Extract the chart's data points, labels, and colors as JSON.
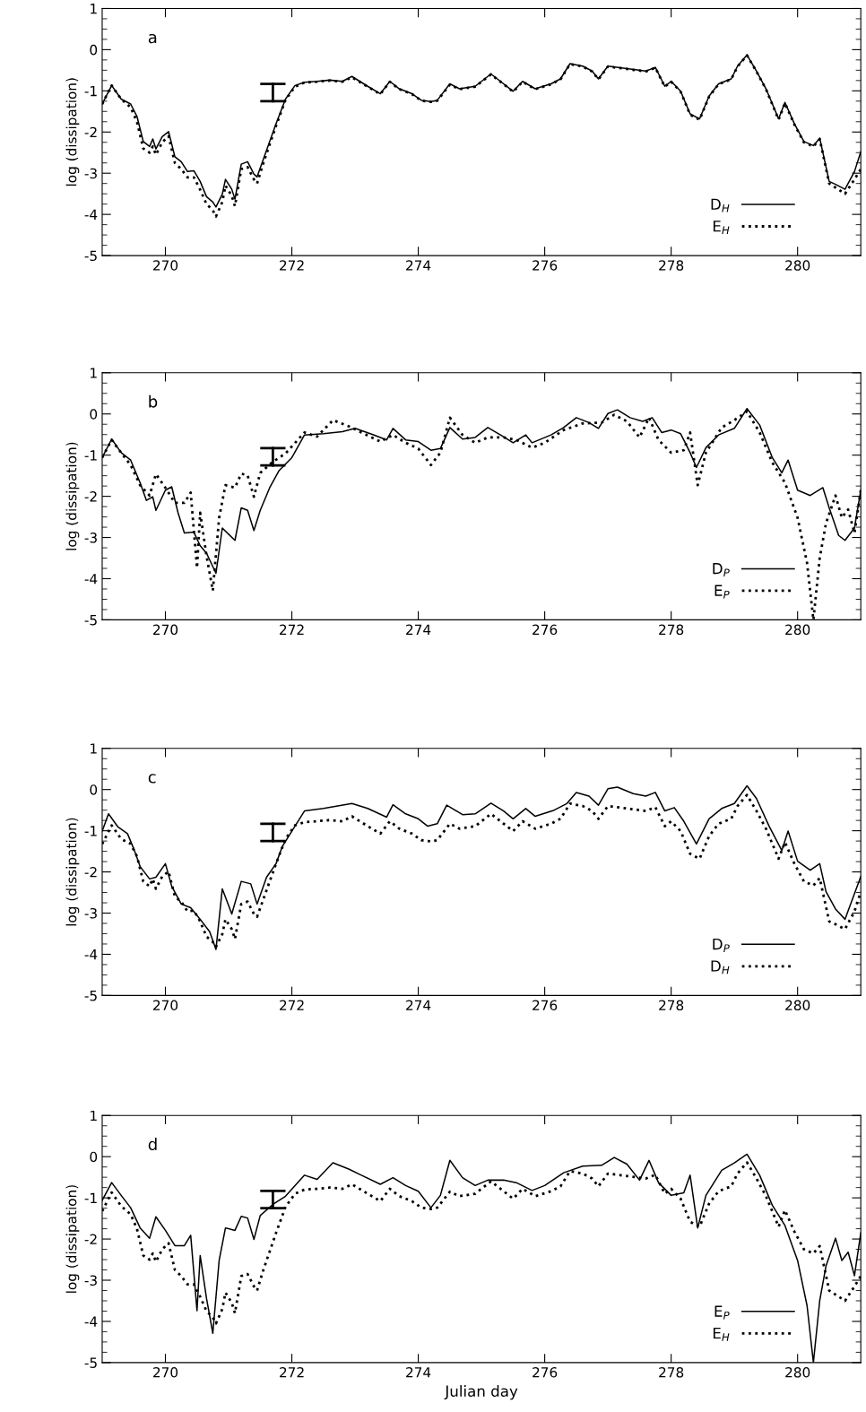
{
  "chart_data": [
    {
      "type": "line",
      "ylabel": "log (dissipation)",
      "annotations": [
        "a"
      ],
      "xlim": [
        269,
        281
      ],
      "ylim": [
        -5,
        1
      ],
      "xticks": [
        270,
        272,
        274,
        276,
        278,
        280
      ],
      "yticks": [
        -5,
        -4,
        -3,
        -2,
        -1,
        0,
        1
      ],
      "legend": "bottom right",
      "series": [
        {
          "name": "D$_{H}$",
          "color": "#000000",
          "line_style": "solid",
          "x": [
            269.0,
            269.15,
            269.3,
            269.45,
            269.55,
            269.65,
            269.75,
            269.8,
            269.85,
            269.95,
            270.05,
            270.15,
            270.25,
            270.35,
            270.45,
            270.55,
            270.65,
            270.75,
            270.8,
            270.9,
            270.95,
            271.05,
            271.1,
            271.2,
            271.3,
            271.4,
            271.45,
            271.55,
            271.65,
            271.75,
            271.9,
            272.05,
            272.2,
            272.4,
            272.6,
            272.8,
            272.95,
            273.2,
            273.4,
            273.55,
            273.7,
            273.9,
            274.05,
            274.2,
            274.3,
            274.5,
            274.65,
            274.9,
            275.15,
            275.3,
            275.5,
            275.65,
            275.85,
            276.1,
            276.25,
            276.4,
            276.6,
            276.75,
            276.85,
            277.0,
            277.3,
            277.6,
            277.75,
            277.9,
            278.0,
            278.15,
            278.3,
            278.45,
            278.6,
            278.75,
            278.95,
            279.05,
            279.2,
            279.35,
            279.5,
            279.7,
            279.8,
            279.95,
            280.1,
            280.25,
            280.35,
            280.5,
            280.6,
            280.75,
            280.9,
            281.0
          ],
          "values": [
            -1.32,
            -0.87,
            -1.2,
            -1.32,
            -1.62,
            -2.23,
            -2.35,
            -2.17,
            -2.41,
            -2.11,
            -1.99,
            -2.6,
            -2.72,
            -2.96,
            -2.94,
            -3.2,
            -3.57,
            -3.7,
            -3.82,
            -3.51,
            -3.15,
            -3.39,
            -3.63,
            -2.78,
            -2.72,
            -3.02,
            -3.09,
            -2.66,
            -2.23,
            -1.8,
            -1.2,
            -0.87,
            -0.79,
            -0.77,
            -0.74,
            -0.77,
            -0.65,
            -0.89,
            -1.07,
            -0.77,
            -0.95,
            -1.07,
            -1.23,
            -1.26,
            -1.23,
            -0.83,
            -0.95,
            -0.89,
            -0.59,
            -0.77,
            -1.01,
            -0.77,
            -0.95,
            -0.83,
            -0.71,
            -0.34,
            -0.4,
            -0.52,
            -0.71,
            -0.4,
            -0.46,
            -0.52,
            -0.43,
            -0.89,
            -0.77,
            -1.01,
            -1.56,
            -1.68,
            -1.13,
            -0.83,
            -0.71,
            -0.4,
            -0.13,
            -0.52,
            -0.95,
            -1.68,
            -1.28,
            -1.8,
            -2.23,
            -2.33,
            -2.15,
            -3.2,
            -3.27,
            -3.39,
            -2.96,
            -2.48
          ]
        },
        {
          "name": "E$_{H}$",
          "color": "#000000",
          "line_style": "dotted",
          "x": [
            269.0,
            269.15,
            269.3,
            269.45,
            269.55,
            269.65,
            269.75,
            269.8,
            269.85,
            269.95,
            270.05,
            270.15,
            270.25,
            270.35,
            270.45,
            270.55,
            270.65,
            270.75,
            270.8,
            270.9,
            270.95,
            271.05,
            271.1,
            271.2,
            271.3,
            271.4,
            271.45,
            271.55,
            271.65,
            271.75,
            271.9,
            272.05,
            272.2,
            272.4,
            272.6,
            272.8,
            272.95,
            273.2,
            273.4,
            273.55,
            273.7,
            273.9,
            274.05,
            274.2,
            274.3,
            274.5,
            274.65,
            274.9,
            275.15,
            275.3,
            275.5,
            275.65,
            275.85,
            276.1,
            276.25,
            276.4,
            276.6,
            276.75,
            276.85,
            277.0,
            277.3,
            277.6,
            277.75,
            277.9,
            278.0,
            278.15,
            278.3,
            278.45,
            278.6,
            278.75,
            278.95,
            279.05,
            279.2,
            279.35,
            279.5,
            279.7,
            279.8,
            279.95,
            280.1,
            280.25,
            280.35,
            280.5,
            280.6,
            280.75,
            280.9,
            281.0
          ],
          "values": [
            -1.32,
            -0.87,
            -1.2,
            -1.4,
            -1.75,
            -2.4,
            -2.5,
            -2.35,
            -2.55,
            -2.25,
            -2.1,
            -2.75,
            -2.9,
            -3.1,
            -3.1,
            -3.4,
            -3.75,
            -3.9,
            -4.05,
            -3.7,
            -3.3,
            -3.55,
            -3.8,
            -2.9,
            -2.85,
            -3.15,
            -3.25,
            -2.75,
            -2.3,
            -1.85,
            -1.22,
            -0.9,
            -0.8,
            -0.78,
            -0.75,
            -0.78,
            -0.67,
            -0.9,
            -1.08,
            -0.78,
            -0.96,
            -1.08,
            -1.24,
            -1.27,
            -1.24,
            -0.85,
            -0.96,
            -0.9,
            -0.6,
            -0.78,
            -1.02,
            -0.78,
            -0.96,
            -0.84,
            -0.72,
            -0.35,
            -0.41,
            -0.53,
            -0.72,
            -0.41,
            -0.47,
            -0.53,
            -0.44,
            -0.9,
            -0.78,
            -1.02,
            -1.58,
            -1.7,
            -1.14,
            -0.84,
            -0.72,
            -0.41,
            -0.14,
            -0.53,
            -0.96,
            -1.7,
            -1.3,
            -1.82,
            -2.25,
            -2.35,
            -2.17,
            -3.25,
            -3.35,
            -3.5,
            -3.15,
            -2.9
          ]
        }
      ]
    },
    {
      "type": "line",
      "ylabel": "log (dissipation)",
      "annotations": [
        "b"
      ],
      "xlim": [
        269,
        281
      ],
      "ylim": [
        -5,
        1
      ],
      "xticks": [
        270,
        272,
        274,
        276,
        278,
        280
      ],
      "yticks": [
        -5,
        -4,
        -3,
        -2,
        -1,
        0,
        1
      ],
      "legend": "bottom right",
      "series": [
        {
          "name": "D$_{P}$",
          "color": "#000000",
          "line_style": "solid",
          "x": [
            269.0,
            269.15,
            269.3,
            269.45,
            269.6,
            269.7,
            269.8,
            269.85,
            270.0,
            270.1,
            270.2,
            270.3,
            270.45,
            270.55,
            270.65,
            270.8,
            270.9,
            271.1,
            271.2,
            271.3,
            271.4,
            271.5,
            271.65,
            271.8,
            272.0,
            272.2,
            272.5,
            272.8,
            273.0,
            273.3,
            273.5,
            273.6,
            273.8,
            274.0,
            274.2,
            274.35,
            274.5,
            274.7,
            274.9,
            275.1,
            275.3,
            275.5,
            275.7,
            275.8,
            276.1,
            276.3,
            276.5,
            276.7,
            276.85,
            277.0,
            277.15,
            277.35,
            277.55,
            277.7,
            277.85,
            278.0,
            278.15,
            278.3,
            278.4,
            278.55,
            278.75,
            279.0,
            279.2,
            279.4,
            279.6,
            279.75,
            279.85,
            280.0,
            280.2,
            280.4,
            280.5,
            280.65,
            280.75,
            280.9,
            281.0
          ],
          "values": [
            -1.06,
            -0.61,
            -0.94,
            -1.12,
            -1.67,
            -2.1,
            -2.01,
            -2.34,
            -1.85,
            -1.77,
            -2.4,
            -2.89,
            -2.87,
            -3.2,
            -3.38,
            -3.87,
            -2.77,
            -3.07,
            -2.28,
            -2.34,
            -2.83,
            -2.34,
            -1.79,
            -1.37,
            -1.06,
            -0.51,
            -0.48,
            -0.43,
            -0.35,
            -0.51,
            -0.63,
            -0.35,
            -0.63,
            -0.67,
            -0.88,
            -0.84,
            -0.33,
            -0.61,
            -0.57,
            -0.33,
            -0.51,
            -0.7,
            -0.51,
            -0.7,
            -0.51,
            -0.33,
            -0.09,
            -0.21,
            -0.35,
            0.01,
            0.1,
            -0.09,
            -0.18,
            -0.09,
            -0.45,
            -0.39,
            -0.48,
            -0.94,
            -1.3,
            -0.82,
            -0.51,
            -0.35,
            0.13,
            -0.27,
            -1.06,
            -1.43,
            -1.12,
            -1.85,
            -1.98,
            -1.79,
            -2.28,
            -2.95,
            -3.07,
            -2.77,
            -1.85
          ]
        },
        {
          "name": "E$_{P}$",
          "color": "#000000",
          "line_style": "dotted",
          "x": [
            269.0,
            269.15,
            269.3,
            269.45,
            269.6,
            269.75,
            269.85,
            270.0,
            270.15,
            270.3,
            270.4,
            270.5,
            270.55,
            270.65,
            270.75,
            270.85,
            270.95,
            271.1,
            271.2,
            271.3,
            271.4,
            271.5,
            271.7,
            271.9,
            272.2,
            272.4,
            272.65,
            272.9,
            273.1,
            273.4,
            273.6,
            273.8,
            274.0,
            274.2,
            274.35,
            274.5,
            274.7,
            274.9,
            275.1,
            275.35,
            275.55,
            275.8,
            276.0,
            276.3,
            276.6,
            276.9,
            277.1,
            277.3,
            277.5,
            277.65,
            277.8,
            278.0,
            278.2,
            278.3,
            278.42,
            278.55,
            278.8,
            279.0,
            279.2,
            279.4,
            279.6,
            279.8,
            280.0,
            280.15,
            280.25,
            280.35,
            280.45,
            280.6,
            280.7,
            280.8,
            280.9,
            281.0
          ],
          "values": [
            -1.06,
            -0.63,
            -0.94,
            -1.24,
            -1.73,
            -1.98,
            -1.46,
            -1.79,
            -2.16,
            -2.16,
            -1.91,
            -3.74,
            -2.4,
            -3.44,
            -4.29,
            -2.52,
            -1.73,
            -1.79,
            -1.45,
            -1.49,
            -2.01,
            -1.43,
            -1.16,
            -0.96,
            -0.45,
            -0.55,
            -0.15,
            -0.3,
            -0.45,
            -0.67,
            -0.51,
            -0.7,
            -0.84,
            -1.24,
            -0.94,
            -0.09,
            -0.51,
            -0.7,
            -0.57,
            -0.57,
            -0.63,
            -0.82,
            -0.7,
            -0.39,
            -0.23,
            -0.21,
            -0.02,
            -0.18,
            -0.57,
            -0.09,
            -0.63,
            -0.94,
            -0.88,
            -0.45,
            -1.73,
            -0.94,
            -0.33,
            -0.15,
            0.06,
            -0.45,
            -1.18,
            -1.67,
            -2.52,
            -3.62,
            -5.0,
            -3.5,
            -2.65,
            -1.98,
            -2.52,
            -2.32,
            -2.89,
            -1.85
          ]
        }
      ]
    },
    {
      "type": "line",
      "ylabel": "log (dissipation)",
      "annotations": [
        "c"
      ],
      "xlim": [
        269,
        281
      ],
      "ylim": [
        -5,
        1
      ],
      "xticks": [
        270,
        272,
        274,
        276,
        278,
        280
      ],
      "yticks": [
        -5,
        -4,
        -3,
        -2,
        -1,
        0,
        1
      ],
      "legend": "bottom right",
      "series": [
        {
          "name": "D$_{P}$",
          "color": "#000000",
          "line_style": "solid",
          "x": [
            269.0,
            269.1,
            269.25,
            269.4,
            269.5,
            269.6,
            269.75,
            269.85,
            270.0,
            270.1,
            270.25,
            270.4,
            270.55,
            270.7,
            270.8,
            270.9,
            271.05,
            271.2,
            271.35,
            271.45,
            271.6,
            271.75,
            271.85,
            272.0,
            272.2,
            272.5,
            272.95,
            273.2,
            273.5,
            273.6,
            273.8,
            274.0,
            274.15,
            274.3,
            274.45,
            274.7,
            274.9,
            275.15,
            275.35,
            275.5,
            275.7,
            275.85,
            276.15,
            276.35,
            276.5,
            276.7,
            276.85,
            277.0,
            277.15,
            277.4,
            277.6,
            277.75,
            277.9,
            278.05,
            278.2,
            278.4,
            278.6,
            278.8,
            279.0,
            279.2,
            279.35,
            279.55,
            279.75,
            279.85,
            280.0,
            280.2,
            280.35,
            280.45,
            280.6,
            280.75,
            281.0
          ],
          "values": [
            -1.01,
            -0.59,
            -0.91,
            -1.07,
            -1.44,
            -1.87,
            -2.17,
            -2.13,
            -1.8,
            -2.35,
            -2.78,
            -2.87,
            -3.15,
            -3.45,
            -3.88,
            -2.41,
            -3.02,
            -2.23,
            -2.29,
            -2.78,
            -2.13,
            -1.8,
            -1.38,
            -1.01,
            -0.52,
            -0.46,
            -0.34,
            -0.46,
            -0.67,
            -0.37,
            -0.59,
            -0.71,
            -0.89,
            -0.83,
            -0.38,
            -0.61,
            -0.59,
            -0.33,
            -0.52,
            -0.71,
            -0.46,
            -0.65,
            -0.5,
            -0.34,
            -0.07,
            -0.16,
            -0.38,
            0.02,
            0.06,
            -0.1,
            -0.16,
            -0.07,
            -0.52,
            -0.44,
            -0.77,
            -1.32,
            -0.71,
            -0.46,
            -0.34,
            0.09,
            -0.22,
            -0.89,
            -1.48,
            -1.01,
            -1.74,
            -1.96,
            -1.8,
            -2.48,
            -2.9,
            -3.15,
            -2.11
          ]
        },
        {
          "name": "D$_{H}$",
          "color": "#000000",
          "line_style": "dotted",
          "x": [
            269.0,
            269.15,
            269.3,
            269.45,
            269.55,
            269.65,
            269.75,
            269.8,
            269.85,
            269.95,
            270.05,
            270.15,
            270.25,
            270.35,
            270.45,
            270.55,
            270.65,
            270.75,
            270.8,
            270.9,
            270.95,
            271.05,
            271.1,
            271.2,
            271.3,
            271.4,
            271.45,
            271.55,
            271.65,
            271.75,
            271.9,
            272.05,
            272.2,
            272.4,
            272.6,
            272.8,
            272.95,
            273.2,
            273.4,
            273.55,
            273.7,
            273.9,
            274.05,
            274.2,
            274.3,
            274.5,
            274.65,
            274.9,
            275.15,
            275.3,
            275.5,
            275.65,
            275.85,
            276.1,
            276.25,
            276.4,
            276.6,
            276.75,
            276.85,
            277.0,
            277.3,
            277.6,
            277.75,
            277.9,
            278.0,
            278.15,
            278.3,
            278.45,
            278.6,
            278.75,
            278.95,
            279.05,
            279.2,
            279.35,
            279.5,
            279.7,
            279.8,
            279.95,
            280.1,
            280.25,
            280.35,
            280.5,
            280.6,
            280.75,
            280.9,
            281.0
          ],
          "values": [
            -1.32,
            -0.87,
            -1.2,
            -1.32,
            -1.62,
            -2.23,
            -2.35,
            -2.17,
            -2.41,
            -2.11,
            -1.99,
            -2.6,
            -2.72,
            -2.96,
            -2.94,
            -3.2,
            -3.57,
            -3.7,
            -3.82,
            -3.51,
            -3.15,
            -3.39,
            -3.63,
            -2.78,
            -2.72,
            -3.02,
            -3.09,
            -2.66,
            -2.23,
            -1.8,
            -1.2,
            -0.87,
            -0.79,
            -0.77,
            -0.74,
            -0.77,
            -0.65,
            -0.89,
            -1.07,
            -0.77,
            -0.95,
            -1.07,
            -1.23,
            -1.26,
            -1.23,
            -0.83,
            -0.95,
            -0.89,
            -0.59,
            -0.77,
            -1.01,
            -0.77,
            -0.95,
            -0.83,
            -0.71,
            -0.34,
            -0.4,
            -0.52,
            -0.71,
            -0.4,
            -0.46,
            -0.52,
            -0.43,
            -0.89,
            -0.77,
            -1.01,
            -1.56,
            -1.68,
            -1.13,
            -0.83,
            -0.71,
            -0.4,
            -0.13,
            -0.52,
            -0.95,
            -1.68,
            -1.28,
            -1.8,
            -2.23,
            -2.33,
            -2.15,
            -3.2,
            -3.27,
            -3.39,
            -2.96,
            -2.48
          ]
        }
      ]
    },
    {
      "type": "line",
      "xlabel": "Julian day",
      "ylabel": "log (dissipation)",
      "annotations": [
        "d"
      ],
      "xlim": [
        269,
        281
      ],
      "ylim": [
        -5,
        1
      ],
      "xticks": [
        270,
        272,
        274,
        276,
        278,
        280
      ],
      "yticks": [
        -5,
        -4,
        -3,
        -2,
        -1,
        0,
        1
      ],
      "legend": "bottom right",
      "series": [
        {
          "name": "E$_{P}$",
          "color": "#000000",
          "line_style": "solid",
          "x": [
            269.0,
            269.15,
            269.3,
            269.45,
            269.6,
            269.75,
            269.85,
            270.0,
            270.15,
            270.3,
            270.4,
            270.5,
            270.55,
            270.65,
            270.75,
            270.85,
            270.95,
            271.1,
            271.2,
            271.3,
            271.4,
            271.5,
            271.7,
            271.9,
            272.2,
            272.4,
            272.65,
            272.9,
            273.1,
            273.4,
            273.6,
            273.8,
            274.0,
            274.2,
            274.35,
            274.5,
            274.7,
            274.9,
            275.1,
            275.35,
            275.55,
            275.8,
            276.0,
            276.3,
            276.6,
            276.9,
            277.1,
            277.3,
            277.5,
            277.65,
            277.8,
            278.0,
            278.2,
            278.3,
            278.42,
            278.55,
            278.8,
            279.0,
            279.2,
            279.4,
            279.6,
            279.8,
            280.0,
            280.15,
            280.25,
            280.35,
            280.45,
            280.6,
            280.7,
            280.8,
            280.9,
            281.0
          ],
          "values": [
            -1.06,
            -0.63,
            -0.94,
            -1.24,
            -1.73,
            -1.98,
            -1.46,
            -1.79,
            -2.16,
            -2.16,
            -1.91,
            -3.74,
            -2.4,
            -3.44,
            -4.29,
            -2.52,
            -1.73,
            -1.79,
            -1.45,
            -1.49,
            -2.01,
            -1.43,
            -1.16,
            -0.96,
            -0.45,
            -0.55,
            -0.15,
            -0.3,
            -0.45,
            -0.67,
            -0.51,
            -0.7,
            -0.84,
            -1.24,
            -0.94,
            -0.09,
            -0.51,
            -0.7,
            -0.57,
            -0.57,
            -0.63,
            -0.82,
            -0.7,
            -0.39,
            -0.23,
            -0.21,
            -0.02,
            -0.18,
            -0.57,
            -0.09,
            -0.63,
            -0.94,
            -0.88,
            -0.45,
            -1.73,
            -0.94,
            -0.33,
            -0.15,
            0.06,
            -0.45,
            -1.18,
            -1.67,
            -2.52,
            -3.62,
            -5.0,
            -3.5,
            -2.65,
            -1.98,
            -2.52,
            -2.32,
            -2.89,
            -1.85
          ]
        },
        {
          "name": "E$_{H}$",
          "color": "#000000",
          "line_style": "dotted",
          "x": [
            269.0,
            269.15,
            269.3,
            269.45,
            269.55,
            269.65,
            269.75,
            269.8,
            269.85,
            269.95,
            270.05,
            270.15,
            270.25,
            270.35,
            270.45,
            270.55,
            270.65,
            270.75,
            270.8,
            270.9,
            270.95,
            271.05,
            271.1,
            271.2,
            271.3,
            271.4,
            271.45,
            271.55,
            271.65,
            271.75,
            271.9,
            272.05,
            272.2,
            272.4,
            272.6,
            272.8,
            272.95,
            273.2,
            273.4,
            273.55,
            273.7,
            273.9,
            274.05,
            274.2,
            274.3,
            274.5,
            274.65,
            274.9,
            275.15,
            275.3,
            275.5,
            275.65,
            275.85,
            276.1,
            276.25,
            276.4,
            276.6,
            276.75,
            276.85,
            277.0,
            277.3,
            277.6,
            277.75,
            277.9,
            278.0,
            278.15,
            278.3,
            278.45,
            278.6,
            278.75,
            278.95,
            279.05,
            279.2,
            279.35,
            279.5,
            279.7,
            279.8,
            279.95,
            280.1,
            280.25,
            280.35,
            280.5,
            280.6,
            280.75,
            280.9,
            281.0
          ],
          "values": [
            -1.32,
            -0.87,
            -1.2,
            -1.4,
            -1.75,
            -2.4,
            -2.5,
            -2.35,
            -2.55,
            -2.25,
            -2.1,
            -2.75,
            -2.9,
            -3.1,
            -3.1,
            -3.4,
            -3.75,
            -3.9,
            -4.05,
            -3.7,
            -3.3,
            -3.55,
            -3.8,
            -2.9,
            -2.85,
            -3.15,
            -3.25,
            -2.75,
            -2.3,
            -1.85,
            -1.22,
            -0.9,
            -0.8,
            -0.78,
            -0.75,
            -0.78,
            -0.67,
            -0.9,
            -1.08,
            -0.78,
            -0.96,
            -1.08,
            -1.24,
            -1.27,
            -1.24,
            -0.85,
            -0.96,
            -0.9,
            -0.6,
            -0.78,
            -1.02,
            -0.78,
            -0.96,
            -0.84,
            -0.72,
            -0.35,
            -0.41,
            -0.53,
            -0.72,
            -0.41,
            -0.47,
            -0.53,
            -0.44,
            -0.9,
            -0.78,
            -1.02,
            -1.58,
            -1.7,
            -1.14,
            -0.84,
            -0.72,
            -0.41,
            -0.14,
            -0.53,
            -0.96,
            -1.7,
            -1.3,
            -1.82,
            -2.25,
            -2.35,
            -2.17,
            -3.25,
            -3.35,
            -3.5,
            -3.15,
            -2.9
          ]
        }
      ]
    }
  ]
}
